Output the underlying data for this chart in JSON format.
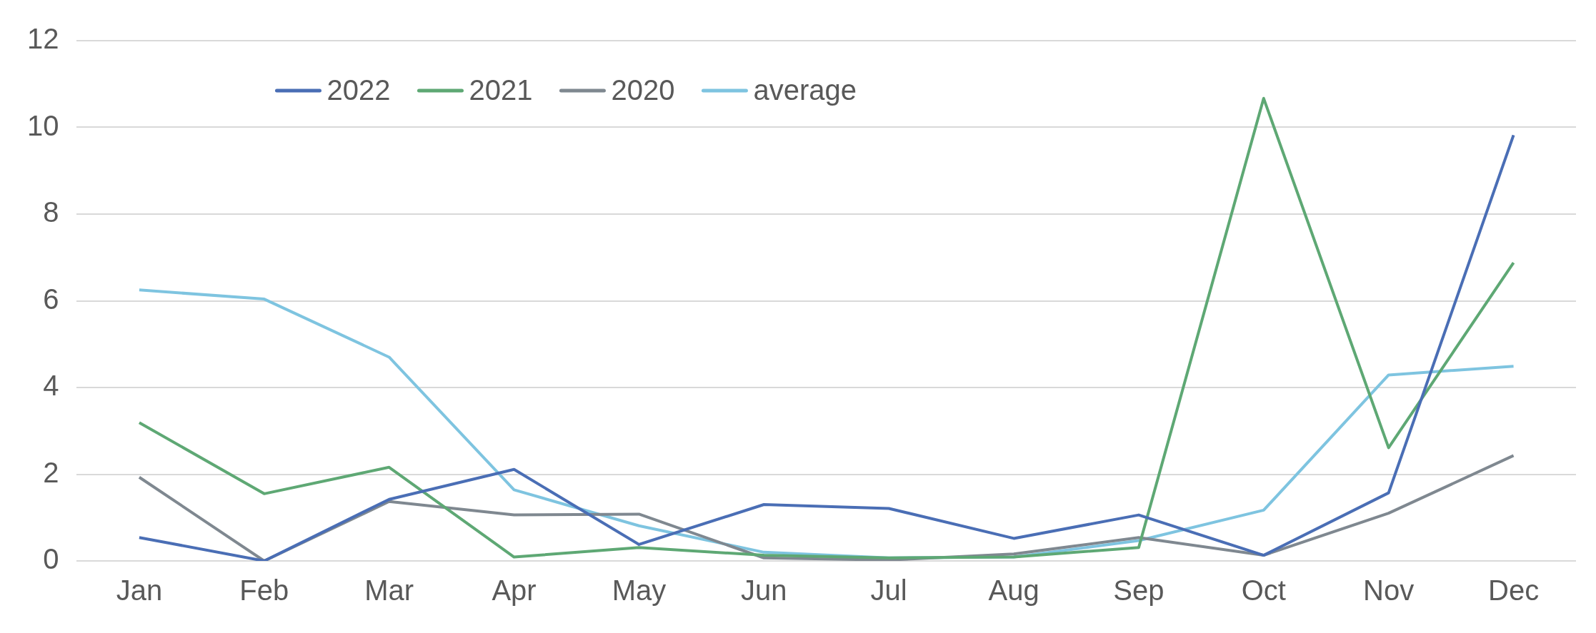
{
  "chart_data": {
    "type": "line",
    "categories": [
      "Jan",
      "Feb",
      "Mar",
      "Apr",
      "May",
      "Jun",
      "Jul",
      "Aug",
      "Sep",
      "Oct",
      "Nov",
      "Dec"
    ],
    "series": [
      {
        "name": "2022",
        "color": "#4a6eb5",
        "values": [
          0.54,
          0,
          1.42,
          2.11,
          0.38,
          1.3,
          1.21,
          0.52,
          1.06,
          0.13,
          1.57,
          9.82
        ]
      },
      {
        "name": "2021",
        "color": "#5ea874",
        "values": [
          3.19,
          1.55,
          2.16,
          0.09,
          0.31,
          0.13,
          0.07,
          0.09,
          0.31,
          10.67,
          2.61,
          6.88
        ]
      },
      {
        "name": "2020",
        "color": "#7f8890",
        "values": [
          1.93,
          0,
          1.37,
          1.06,
          1.08,
          0.07,
          0.02,
          0.16,
          0.54,
          0.13,
          1.1,
          2.43
        ]
      },
      {
        "name": "average",
        "color": "#7ec4e0",
        "values": [
          6.25,
          6.04,
          4.7,
          1.64,
          0.81,
          0.2,
          0.07,
          0.09,
          0.47,
          1.17,
          4.29,
          4.49
        ]
      }
    ],
    "ylim": [
      0,
      12
    ],
    "yticks": [
      0,
      2,
      4,
      6,
      8,
      10,
      12
    ],
    "grid": "y",
    "legend": "top left",
    "marker": "none",
    "line_style": "solid"
  }
}
